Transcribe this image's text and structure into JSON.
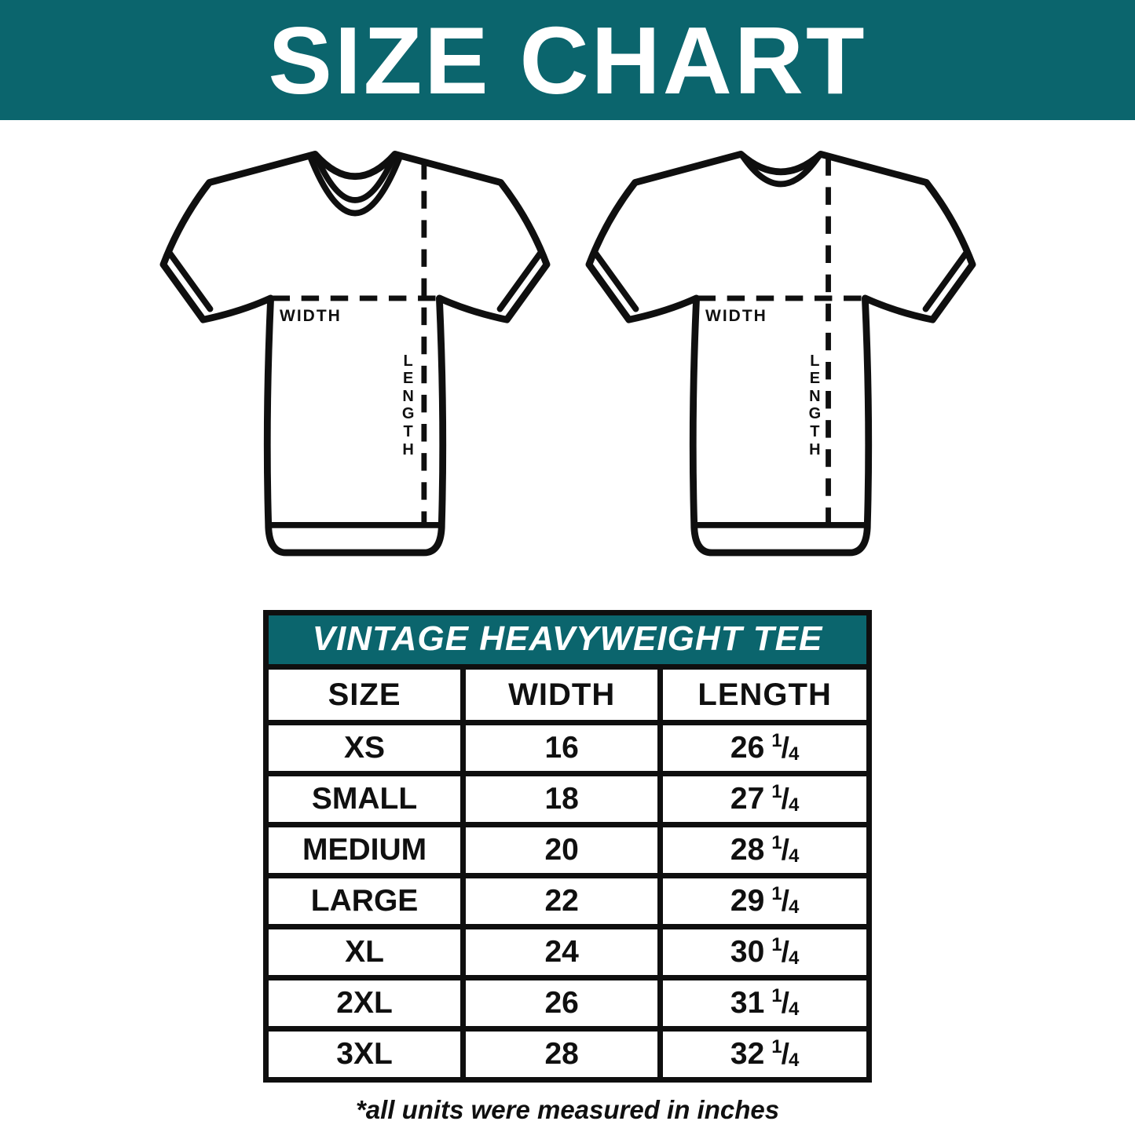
{
  "header": {
    "title": "SIZE CHART"
  },
  "colors": {
    "accent": "#0b656d",
    "ink": "#101010",
    "background": "#ffffff",
    "banner_text": "#ffffff"
  },
  "diagrams": {
    "front": {
      "view": "tshirt-front",
      "width_label": "WIDTH",
      "length_label": "LENGTH"
    },
    "back": {
      "view": "tshirt-back",
      "width_label": "WIDTH",
      "length_label": "LENGTH"
    }
  },
  "table": {
    "title": "VINTAGE HEAVYWEIGHT TEE",
    "columns": [
      "SIZE",
      "WIDTH",
      "LENGTH"
    ],
    "rows": [
      {
        "size": "XS",
        "width": "16",
        "length": {
          "whole": "26",
          "num": "1",
          "den": "4"
        }
      },
      {
        "size": "SMALL",
        "width": "18",
        "length": {
          "whole": "27",
          "num": "1",
          "den": "4"
        }
      },
      {
        "size": "MEDIUM",
        "width": "20",
        "length": {
          "whole": "28",
          "num": "1",
          "den": "4"
        }
      },
      {
        "size": "LARGE",
        "width": "22",
        "length": {
          "whole": "29",
          "num": "1",
          "den": "4"
        }
      },
      {
        "size": "XL",
        "width": "24",
        "length": {
          "whole": "30",
          "num": "1",
          "den": "4"
        }
      },
      {
        "size": "2XL",
        "width": "26",
        "length": {
          "whole": "31",
          "num": "1",
          "den": "4"
        }
      },
      {
        "size": "3XL",
        "width": "28",
        "length": {
          "whole": "32",
          "num": "1",
          "den": "4"
        }
      }
    ]
  },
  "footnote": "*all units were measured in inches",
  "chart_data": {
    "type": "table",
    "title": "VINTAGE HEAVYWEIGHT TEE",
    "columns": [
      "SIZE",
      "WIDTH",
      "LENGTH"
    ],
    "rows": [
      [
        "XS",
        16,
        "26 1/4"
      ],
      [
        "SMALL",
        18,
        "27 1/4"
      ],
      [
        "MEDIUM",
        20,
        "28 1/4"
      ],
      [
        "LARGE",
        22,
        "29 1/4"
      ],
      [
        "XL",
        24,
        "30 1/4"
      ],
      [
        "2XL",
        26,
        "31 1/4"
      ],
      [
        "3XL",
        28,
        "32 1/4"
      ]
    ],
    "units": "inches"
  }
}
